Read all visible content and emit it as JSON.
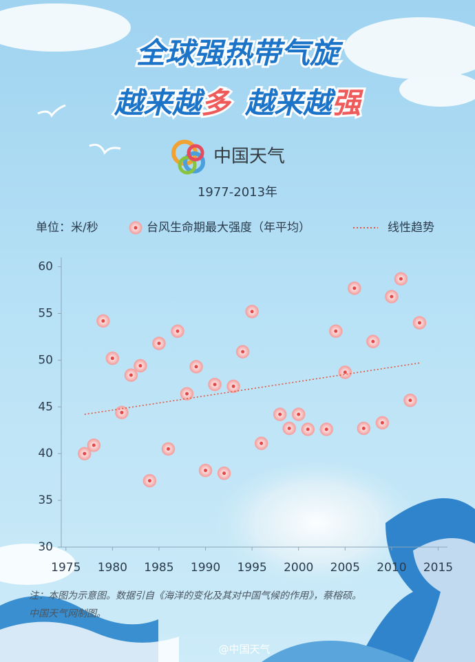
{
  "chart_data": {
    "type": "scatter",
    "title": {
      "line1": "全球强热带气旋",
      "line2": [
        "越来越",
        "多",
        "越来越",
        "强"
      ]
    },
    "logo_text": "中国天气",
    "subtitle": "1977-2013年",
    "unit_label": "单位：米/秒",
    "series": [
      {
        "name": "台风生命期最大强度（年平均）",
        "mode": "markers",
        "color": "#f4a3a3",
        "x": [
          1977,
          1978,
          1979,
          1980,
          1981,
          1982,
          1983,
          1984,
          1985,
          1986,
          1987,
          1988,
          1989,
          1990,
          1991,
          1992,
          1993,
          1994,
          1995,
          1996,
          1998,
          1999,
          2000,
          2001,
          2003,
          2004,
          2005,
          2006,
          2007,
          2008,
          2009,
          2010,
          2011,
          2012,
          2013
        ],
        "values": [
          40.0,
          40.9,
          54.2,
          50.2,
          44.4,
          48.4,
          49.4,
          37.1,
          51.8,
          40.5,
          53.1,
          46.4,
          49.3,
          38.2,
          47.4,
          37.9,
          47.2,
          50.9,
          55.2,
          41.1,
          44.2,
          42.7,
          44.2,
          42.6,
          42.6,
          53.1,
          48.7,
          57.7,
          42.7,
          52.0,
          43.3,
          56.8,
          58.7,
          45.7,
          54.0
        ]
      },
      {
        "name": "线性趋势",
        "mode": "dotted-line",
        "color": "#e2553c",
        "x": [
          1977,
          2013
        ],
        "values": [
          44.2,
          49.7
        ]
      }
    ],
    "xlim": [
      1974.5,
      2016
    ],
    "xticks": [
      1975,
      1980,
      1985,
      1990,
      1995,
      2000,
      2005,
      2010,
      2015
    ],
    "ylim": [
      30,
      61
    ],
    "yticks": [
      30,
      35,
      40,
      45,
      50,
      55,
      60
    ],
    "note": [
      "注：本图为示意图。数据引自《海洋的变化及其对中国气候的作用》，蔡榕硕。",
      "中国天气网制图。"
    ],
    "watermark": "@中国天气"
  }
}
